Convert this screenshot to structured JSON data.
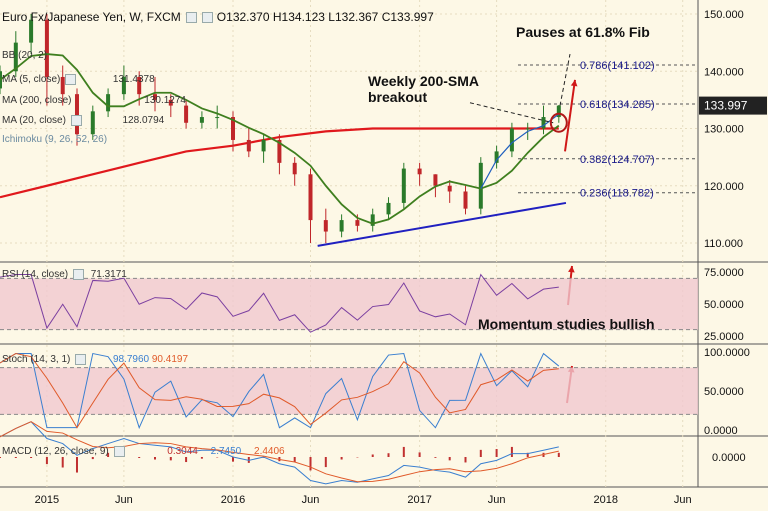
{
  "header": {
    "title": "Euro Fx/Japanese Yen, W, FXCM",
    "open_label": "O",
    "open": "132.370",
    "high_label": "H",
    "high": "134.123",
    "low_label": "L",
    "low": "132.367",
    "close_label": "C",
    "close": "133.997"
  },
  "legend": {
    "ma5_label": "MA (5, close)",
    "ma5_value": "131.4378",
    "ma200_label": "MA (200, close)",
    "ma200_value": "130.1274",
    "ma20_label": "MA (20, close)",
    "ma20_value": "128.0794",
    "ichimoku_label": "Ichimoku (9, 26, 52, 26)",
    "bb_label": "BB (20, 2)"
  },
  "annotations": {
    "fib_pause": "Pauses at 61.8% Fib",
    "sma_breakout_line1": "Weekly 200-SMA",
    "sma_breakout_line2": "breakout",
    "momentum": "Momentum studies bullish"
  },
  "rsi": {
    "label": "RSI (14, close)",
    "value": "71.3171"
  },
  "stoch": {
    "label": "Stoch (14, 3, 1)",
    "k_value": "98.7960",
    "d_value": "90.4197"
  },
  "macd": {
    "label": "MACD (12, 26, close, 9)",
    "hist_value": "0.3044",
    "macd_value": "2.7450",
    "signal_value": "2.4406"
  },
  "colors": {
    "price_up": "#2a7a2a",
    "price_down": "#c0262a",
    "ma200": "#e0181c",
    "ma20": "#3f7f1f",
    "ma5": "#1f5fbf",
    "trendline": "#2020c0",
    "rsi_line": "#7b3fa0",
    "stoch_k": "#3a7fd0",
    "stoch_d": "#e05a2a",
    "macd": "#3a7fd0",
    "signal": "#e05a2a",
    "band_fill": "#f0c8d0",
    "current_price_bg": "#222222"
  },
  "chart_data": {
    "type": "candlestick",
    "x_tick_labels": [
      "2015",
      "Jun",
      "2016",
      "Jun",
      "2017",
      "Jun",
      "2018",
      "Jun"
    ],
    "price_axis_labels": [
      "150.000",
      "140.000",
      "130.000",
      "120.000",
      "110.000"
    ],
    "price_ylim": [
      105,
      152
    ],
    "current_price": "133.997",
    "fib_levels": [
      {
        "label": "0.786(141.102)",
        "value": 141.102
      },
      {
        "label": "0.618(134.285)",
        "value": 134.285
      },
      {
        "label": "0.382(124.707)",
        "value": 124.707
      },
      {
        "label": "0.236(118.782)",
        "value": 118.782
      }
    ],
    "price_series": [
      {
        "d": "2014-10-01",
        "o": 137,
        "c": 140,
        "h": 141,
        "l": 136
      },
      {
        "d": "2014-11-01",
        "o": 140,
        "c": 145,
        "h": 147,
        "l": 139
      },
      {
        "d": "2014-12-01",
        "o": 145,
        "c": 149,
        "h": 150,
        "l": 143
      },
      {
        "d": "2015-01-01",
        "o": 149,
        "c": 139,
        "h": 150,
        "l": 134
      },
      {
        "d": "2015-02-01",
        "o": 139,
        "c": 136,
        "h": 141,
        "l": 134
      },
      {
        "d": "2015-03-01",
        "o": 136,
        "c": 129,
        "h": 137,
        "l": 127
      },
      {
        "d": "2015-04-01",
        "o": 129,
        "c": 133,
        "h": 134,
        "l": 128
      },
      {
        "d": "2015-05-01",
        "o": 133,
        "c": 136,
        "h": 137,
        "l": 132
      },
      {
        "d": "2015-06-01",
        "o": 136,
        "c": 139,
        "h": 141,
        "l": 135
      },
      {
        "d": "2015-07-01",
        "o": 139,
        "c": 136,
        "h": 140,
        "l": 134
      },
      {
        "d": "2015-08-01",
        "o": 136,
        "c": 135,
        "h": 139,
        "l": 133
      },
      {
        "d": "2015-09-01",
        "o": 135,
        "c": 134,
        "h": 136,
        "l": 132
      },
      {
        "d": "2015-10-01",
        "o": 134,
        "c": 131,
        "h": 135,
        "l": 130
      },
      {
        "d": "2015-11-01",
        "o": 131,
        "c": 132,
        "h": 133,
        "l": 130
      },
      {
        "d": "2015-12-01",
        "o": 132,
        "c": 132,
        "h": 134,
        "l": 130
      },
      {
        "d": "2016-01-01",
        "o": 132,
        "c": 128,
        "h": 133,
        "l": 126
      },
      {
        "d": "2016-02-01",
        "o": 128,
        "c": 126,
        "h": 130,
        "l": 125
      },
      {
        "d": "2016-03-01",
        "o": 126,
        "c": 128,
        "h": 129,
        "l": 124
      },
      {
        "d": "2016-04-01",
        "o": 128,
        "c": 124,
        "h": 129,
        "l": 122
      },
      {
        "d": "2016-05-01",
        "o": 124,
        "c": 122,
        "h": 125,
        "l": 120
      },
      {
        "d": "2016-06-01",
        "o": 122,
        "c": 114,
        "h": 123,
        "l": 110
      },
      {
        "d": "2016-07-01",
        "o": 114,
        "c": 112,
        "h": 116,
        "l": 110
      },
      {
        "d": "2016-08-01",
        "o": 112,
        "c": 114,
        "h": 115,
        "l": 111
      },
      {
        "d": "2016-09-01",
        "o": 114,
        "c": 113,
        "h": 115,
        "l": 112
      },
      {
        "d": "2016-10-01",
        "o": 113,
        "c": 115,
        "h": 116,
        "l": 112
      },
      {
        "d": "2016-11-01",
        "o": 115,
        "c": 117,
        "h": 118,
        "l": 114
      },
      {
        "d": "2016-12-01",
        "o": 117,
        "c": 123,
        "h": 124,
        "l": 116
      },
      {
        "d": "2017-01-01",
        "o": 123,
        "c": 122,
        "h": 124,
        "l": 120
      },
      {
        "d": "2017-02-01",
        "o": 122,
        "c": 120,
        "h": 122,
        "l": 118
      },
      {
        "d": "2017-03-01",
        "o": 120,
        "c": 119,
        "h": 121,
        "l": 117
      },
      {
        "d": "2017-04-01",
        "o": 119,
        "c": 116,
        "h": 120,
        "l": 115
      },
      {
        "d": "2017-05-01",
        "o": 116,
        "c": 124,
        "h": 125,
        "l": 115
      },
      {
        "d": "2017-06-01",
        "o": 124,
        "c": 126,
        "h": 127,
        "l": 123
      },
      {
        "d": "2017-07-01",
        "o": 126,
        "c": 130,
        "h": 131,
        "l": 125
      },
      {
        "d": "2017-08-01",
        "o": 130,
        "c": 130,
        "h": 131,
        "l": 128
      },
      {
        "d": "2017-09-01",
        "o": 130,
        "c": 132,
        "h": 134,
        "l": 129
      },
      {
        "d": "2017-10-01",
        "o": 132,
        "c": 134,
        "h": 134.1,
        "l": 131
      }
    ],
    "ma200_series": [
      132,
      131,
      130,
      129,
      129,
      130,
      130,
      131,
      131,
      131,
      131,
      131,
      131,
      130,
      130
    ],
    "ma20_series": [
      142,
      140,
      138,
      136,
      135,
      134,
      133,
      130,
      128,
      125,
      121,
      117,
      114,
      113,
      113,
      115,
      117,
      118,
      120,
      121,
      122,
      124,
      126,
      128
    ],
    "rsi_axis_labels": [
      "75.0000",
      "50.0000",
      "25.0000"
    ],
    "rsi_ylim": [
      25,
      75
    ],
    "stoch_axis_labels": [
      "100.0000",
      "50.0000",
      "0.0000"
    ],
    "stoch_ylim": [
      0,
      100
    ],
    "macd_axis_labels": [
      "0.0000"
    ]
  }
}
